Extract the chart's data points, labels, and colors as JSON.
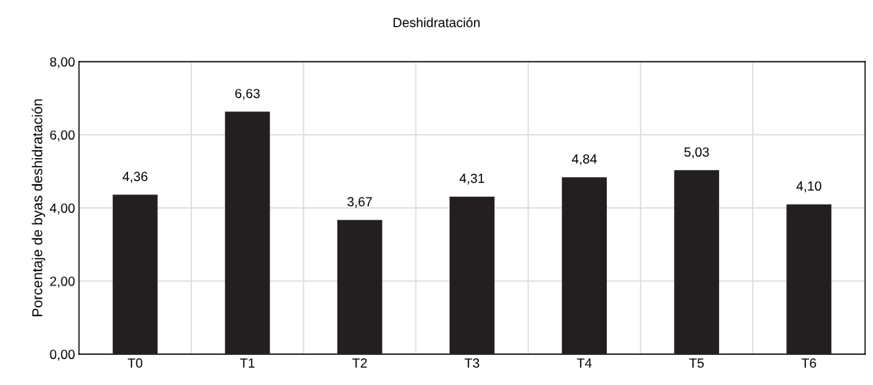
{
  "chart_data": {
    "type": "bar",
    "title": "Deshidratación",
    "ylabel": "Porcentaje de byas deshidratación",
    "categories": [
      "T0",
      "T1",
      "T2",
      "T3",
      "T4",
      "T5",
      "T6"
    ],
    "values": [
      4.36,
      6.63,
      3.67,
      4.31,
      4.84,
      5.03,
      4.1
    ],
    "value_labels": [
      "4,36",
      "6,63",
      "3,67",
      "4,31",
      "4,84",
      "5,03",
      "4,10"
    ],
    "color": "#231f20",
    "ylim": [
      0,
      8
    ],
    "yticks": [
      {
        "value": 0,
        "label": "0,00"
      },
      {
        "value": 2,
        "label": "2,00"
      },
      {
        "value": 4,
        "label": "4,00"
      },
      {
        "value": 6,
        "label": "6,00"
      },
      {
        "value": 8,
        "label": "8,00"
      }
    ],
    "grid": true
  }
}
